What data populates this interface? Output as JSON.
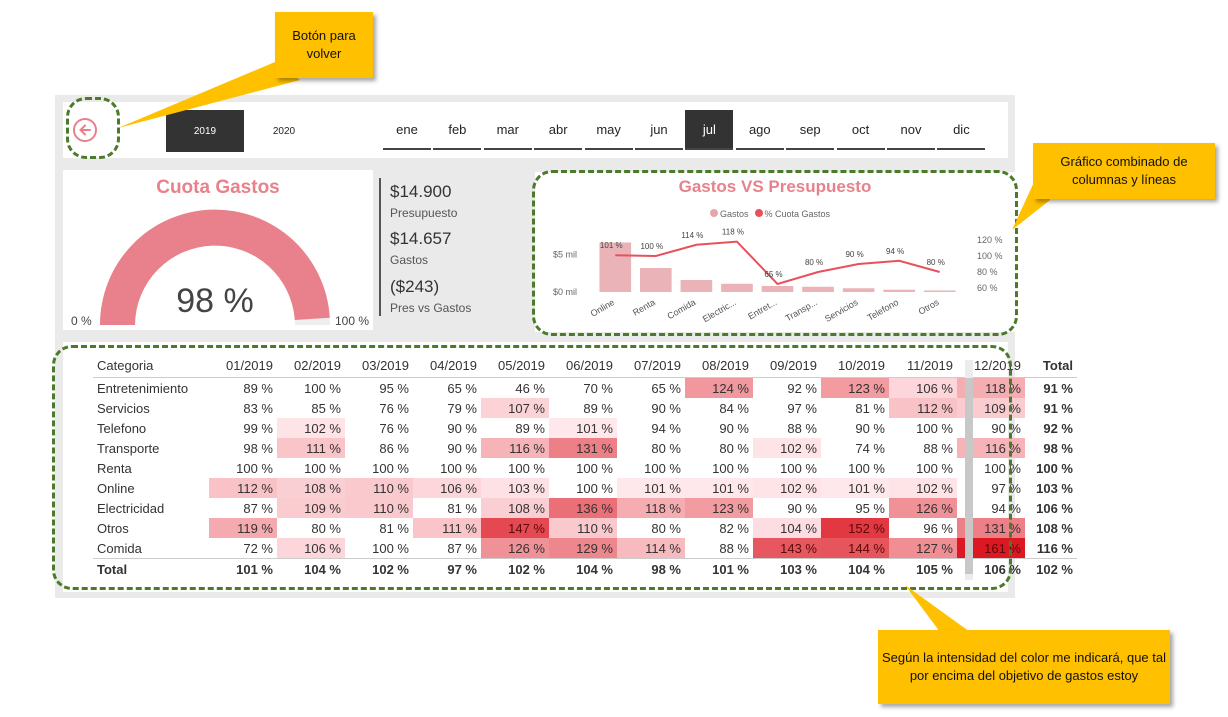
{
  "slicers": {
    "years": [
      {
        "label": "2019",
        "selected": true
      },
      {
        "label": "2020",
        "selected": false
      }
    ],
    "months": [
      {
        "label": "ene",
        "selected": false
      },
      {
        "label": "feb",
        "selected": false
      },
      {
        "label": "mar",
        "selected": false
      },
      {
        "label": "abr",
        "selected": false
      },
      {
        "label": "may",
        "selected": false
      },
      {
        "label": "jun",
        "selected": false
      },
      {
        "label": "jul",
        "selected": true
      },
      {
        "label": "ago",
        "selected": false
      },
      {
        "label": "sep",
        "selected": false
      },
      {
        "label": "oct",
        "selected": false
      },
      {
        "label": "nov",
        "selected": false
      },
      {
        "label": "dic",
        "selected": false
      }
    ]
  },
  "gauge": {
    "title": "Cuota Gastos",
    "value": "98 %",
    "fraction": 0.98,
    "min_label": "0 %",
    "max_label": "100 %",
    "color": "#e8818b"
  },
  "kpis": [
    {
      "value": "$14.900",
      "label": "Presupuesto"
    },
    {
      "value": "$14.657",
      "label": "Gastos"
    },
    {
      "value": "($243)",
      "label": "Pres vs Gastos"
    }
  ],
  "chart": {
    "title": "Gastos VS Presupuesto",
    "legend": [
      {
        "label": "Gastos",
        "color": "#e8a5aa"
      },
      {
        "label": "% Cuota Gastos",
        "color": "#e8505b"
      }
    ],
    "y_left_ticks": [
      "$5 mil",
      "$0 mil"
    ],
    "y_right_ticks": [
      "120 %",
      "100 %",
      "80 %",
      "60 %"
    ]
  },
  "chart_data": {
    "type": "bar",
    "categories": [
      "Online",
      "Renta",
      "Comida",
      "Electric...",
      "Entret...",
      "Transp...",
      "Servicios",
      "Telefono",
      "Otros"
    ],
    "series": [
      {
        "name": "Gastos",
        "type": "bar",
        "values": [
          6.6,
          3.2,
          1.6,
          1.1,
          0.8,
          0.7,
          0.5,
          0.3,
          0.2
        ]
      },
      {
        "name": "% Cuota Gastos",
        "type": "line",
        "values": [
          101,
          100,
          114,
          118,
          65,
          80,
          90,
          94,
          80
        ],
        "labels": [
          "101 %",
          "100 %",
          "114 %",
          "118 %",
          "65 %",
          "80 %",
          "90 %",
          "94 %",
          "80 %"
        ]
      }
    ],
    "y_left_range": [
      0,
      8
    ],
    "y_right_range": [
      55,
      130
    ]
  },
  "matrix": {
    "headers": [
      "Categoria",
      "01/2019",
      "02/2019",
      "03/2019",
      "04/2019",
      "05/2019",
      "06/2019",
      "07/2019",
      "08/2019",
      "09/2019",
      "10/2019",
      "11/2019",
      "12/2019",
      "Total"
    ],
    "rows": [
      {
        "cat": "Entretenimiento",
        "vals": [
          "89 %",
          "100 %",
          "95 %",
          "65 %",
          "46 %",
          "70 %",
          "65 %",
          "124 %",
          "92 %",
          "123 %",
          "106 %",
          "118 %"
        ],
        "total": "91 %"
      },
      {
        "cat": "Servicios",
        "vals": [
          "83 %",
          "85 %",
          "76 %",
          "79 %",
          "107 %",
          "89 %",
          "90 %",
          "84 %",
          "97 %",
          "81 %",
          "112 %",
          "109 %"
        ],
        "total": "91 %"
      },
      {
        "cat": "Telefono",
        "vals": [
          "99 %",
          "102 %",
          "76 %",
          "90 %",
          "89 %",
          "101 %",
          "94 %",
          "90 %",
          "88 %",
          "90 %",
          "100 %",
          "90 %"
        ],
        "total": "92 %"
      },
      {
        "cat": "Transporte",
        "vals": [
          "98 %",
          "111 %",
          "86 %",
          "90 %",
          "116 %",
          "131 %",
          "80 %",
          "80 %",
          "102 %",
          "74 %",
          "88 %",
          "116 %"
        ],
        "total": "98 %"
      },
      {
        "cat": "Renta",
        "vals": [
          "100 %",
          "100 %",
          "100 %",
          "100 %",
          "100 %",
          "100 %",
          "100 %",
          "100 %",
          "100 %",
          "100 %",
          "100 %",
          "100 %"
        ],
        "total": "100 %"
      },
      {
        "cat": "Online",
        "vals": [
          "112 %",
          "108 %",
          "110 %",
          "106 %",
          "103 %",
          "100 %",
          "101 %",
          "101 %",
          "102 %",
          "101 %",
          "102 %",
          "97 %"
        ],
        "total": "103 %"
      },
      {
        "cat": "Electricidad",
        "vals": [
          "87 %",
          "109 %",
          "110 %",
          "81 %",
          "108 %",
          "136 %",
          "118 %",
          "123 %",
          "90 %",
          "95 %",
          "126 %",
          "94 %"
        ],
        "total": "106 %"
      },
      {
        "cat": "Otros",
        "vals": [
          "119 %",
          "80 %",
          "81 %",
          "111 %",
          "147 %",
          "110 %",
          "80 %",
          "82 %",
          "104 %",
          "152 %",
          "96 %",
          "131 %"
        ],
        "total": "108 %"
      },
      {
        "cat": "Comida",
        "vals": [
          "72 %",
          "106 %",
          "100 %",
          "87 %",
          "126 %",
          "129 %",
          "114 %",
          "88 %",
          "143 %",
          "144 %",
          "127 %",
          "161 %"
        ],
        "total": "116 %"
      }
    ],
    "total_row": {
      "cat": "Total",
      "vals": [
        "101 %",
        "104 %",
        "102 %",
        "97 %",
        "102 %",
        "104 %",
        "98 %",
        "101 %",
        "103 %",
        "104 %",
        "105 %",
        "106 %"
      ],
      "total": "102 %"
    }
  },
  "annotations": {
    "back_button": "Botón para volver",
    "combo_chart": "Gráfico combinado de columnas y líneas",
    "color_intensity": "Según la intensidad del color me indicará, que tal por encima del objetivo de gastos estoy"
  }
}
